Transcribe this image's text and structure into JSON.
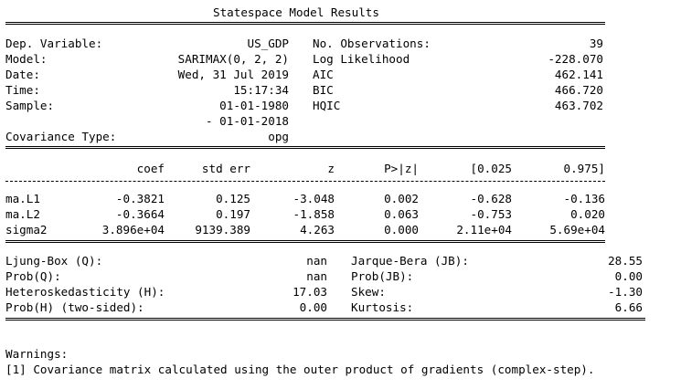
{
  "title": "Statespace Model Results",
  "summary": {
    "left": {
      "dep_variable_label": "Dep. Variable:",
      "dep_variable_value": "US_GDP",
      "model_label": "Model:",
      "model_value": "SARIMAX(0, 2, 2)",
      "date_label": "Date:",
      "date_value": "Wed, 31 Jul 2019",
      "time_label": "Time:",
      "time_value": "15:17:34",
      "sample_label": "Sample:",
      "sample_start": "01-01-1980",
      "sample_end": "- 01-01-2018",
      "cov_type_label": "Covariance Type:",
      "cov_type_value": "opg"
    },
    "right": {
      "nobs_label": "No. Observations:",
      "nobs_value": "39",
      "llf_label": "Log Likelihood",
      "llf_value": "-228.070",
      "aic_label": "AIC",
      "aic_value": "462.141",
      "bic_label": "BIC",
      "bic_value": "466.720",
      "hqic_label": "HQIC",
      "hqic_value": "463.702"
    }
  },
  "params": {
    "headers": [
      "coef",
      "std err",
      "z",
      "P>|z|",
      "[0.025",
      "0.975]"
    ],
    "rows": [
      {
        "name": "ma.L1",
        "coef": "-0.3821",
        "std_err": "0.125",
        "z": "-3.048",
        "p": "0.002",
        "lo": "-0.628",
        "hi": "-0.136"
      },
      {
        "name": "ma.L2",
        "coef": "-0.3664",
        "std_err": "0.197",
        "z": "-1.858",
        "p": "0.063",
        "lo": "-0.753",
        "hi": "0.020"
      },
      {
        "name": "sigma2",
        "coef": "3.896e+04",
        "std_err": "9139.389",
        "z": "4.263",
        "p": "0.000",
        "lo": "2.11e+04",
        "hi": "5.69e+04"
      }
    ]
  },
  "diagnostics": {
    "ljung_box_label": "Ljung-Box (Q):",
    "ljung_box_value": "nan",
    "prob_q_label": "Prob(Q):",
    "prob_q_value": "nan",
    "het_label": "Heteroskedasticity (H):",
    "het_value": "17.03",
    "prob_h_label": "Prob(H) (two-sided):",
    "prob_h_value": "0.00",
    "jb_label": "Jarque-Bera (JB):",
    "jb_value": "28.55",
    "prob_jb_label": "Prob(JB):",
    "prob_jb_value": "0.00",
    "skew_label": "Skew:",
    "skew_value": "-1.30",
    "kurtosis_label": "Kurtosis:",
    "kurtosis_value": "6.66"
  },
  "warnings": {
    "heading": "Warnings:",
    "items": [
      "[1] Covariance matrix calculated using the outer product of gradients (complex-step)."
    ]
  }
}
